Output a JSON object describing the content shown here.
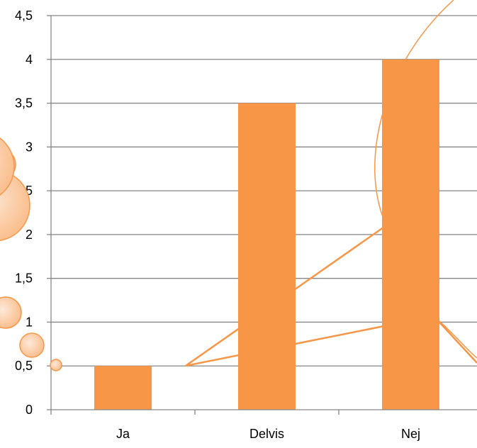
{
  "chart_data": {
    "type": "bar",
    "categories": [
      "Ja",
      "Delvis",
      "Nej"
    ],
    "values": [
      0.5,
      3.5,
      4
    ],
    "y_ticks": [
      "0",
      "0,5",
      "1",
      "1,5",
      "2",
      "2,5",
      "3",
      "3,5",
      "4",
      "4,5"
    ],
    "ylim": [
      0,
      4.5
    ],
    "grid": true,
    "legend": "none",
    "title": "",
    "xlabel": "",
    "ylabel": "",
    "bar_color": "#F79646",
    "grid_color": "#868686",
    "decoration_color": "#F79646"
  }
}
